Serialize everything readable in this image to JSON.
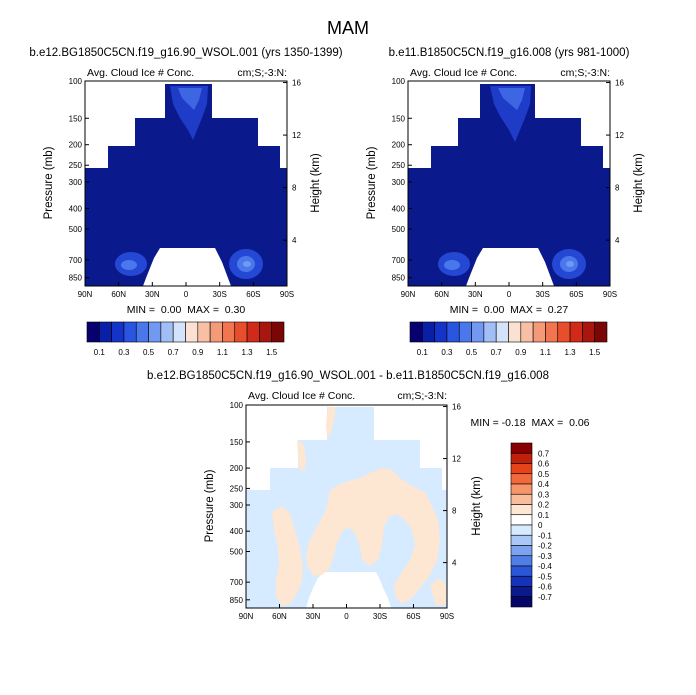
{
  "page_title": "MAM",
  "colors": {
    "land_mask": "#ffffff",
    "frame": "#000000",
    "deep_blue": "#0a1a8c",
    "mid_blue": "#1e3cc8",
    "light_blue": "#d6ebff",
    "light_peach": "#fde6d2"
  },
  "chart_data": [
    {
      "type": "contour",
      "title": "b.e12.BG1850C5CN.f19_g16.90_WSOL.001 (yrs 1350-1399)",
      "left_label": "Avg. Cloud Ice # Conc.",
      "right_label": "cm;S;-3:N:",
      "ylabel": "Pressure (mb)",
      "ylabel_right": "Height (km)",
      "x_ticks": [
        "90N",
        "60N",
        "30N",
        "0",
        "30S",
        "60S",
        "90S"
      ],
      "y_ticks": [
        "100",
        "150",
        "200",
        "250",
        "300",
        "400",
        "500",
        "700",
        "850"
      ],
      "height_ticks": [
        "16",
        "12",
        "8",
        "4"
      ],
      "stats": "MIN =  0.00  MAX =  0.30",
      "min": 0.0,
      "max": 0.3,
      "colorbar_labels": [
        "0.1",
        "0.3",
        "0.5",
        "0.7",
        "0.9",
        "1.1",
        "1.3",
        "1.5"
      ]
    },
    {
      "type": "contour",
      "title": "b.e11.B1850C5CN.f19_g16.008 (yrs 981-1000)",
      "left_label": "Avg. Cloud Ice # Conc.",
      "right_label": "cm;S;-3:N:",
      "ylabel": "Pressure (mb)",
      "ylabel_right": "Height (km)",
      "x_ticks": [
        "90N",
        "60N",
        "30N",
        "0",
        "30S",
        "60S",
        "90S"
      ],
      "y_ticks": [
        "100",
        "150",
        "200",
        "250",
        "300",
        "400",
        "500",
        "700",
        "850"
      ],
      "height_ticks": [
        "16",
        "12",
        "8",
        "4"
      ],
      "stats": "MIN =  0.00  MAX =  0.27",
      "min": 0.0,
      "max": 0.27,
      "colorbar_labels": [
        "0.1",
        "0.3",
        "0.5",
        "0.7",
        "0.9",
        "1.1",
        "1.3",
        "1.5"
      ]
    },
    {
      "type": "contour",
      "title": "b.e12.BG1850C5CN.f19_g16.90_WSOL.001 - b.e11.B1850C5CN.f19_g16.008",
      "left_label": "Avg. Cloud Ice # Conc.",
      "right_label": "cm;S;-3:N:",
      "ylabel": "Pressure (mb)",
      "ylabel_right": "Height (km)",
      "x_ticks": [
        "90N",
        "60N",
        "30N",
        "0",
        "30S",
        "60S",
        "90S"
      ],
      "y_ticks": [
        "100",
        "150",
        "200",
        "250",
        "300",
        "400",
        "500",
        "700",
        "850"
      ],
      "height_ticks": [
        "16",
        "12",
        "8",
        "4"
      ],
      "stats": "MIN = -0.18  MAX =  0.06",
      "min": -0.18,
      "max": 0.06,
      "colorbar_labels": [
        "0.7",
        "0.6",
        "0.5",
        "0.4",
        "0.3",
        "0.2",
        "0.1",
        "0",
        "-0.1",
        "-0.2",
        "-0.3",
        "-0.4",
        "-0.5",
        "-0.6",
        "-0.7"
      ]
    }
  ],
  "colorbar_main_colors": [
    "#08006e",
    "#0a1fa8",
    "#1433c8",
    "#2a55e0",
    "#4a78ec",
    "#7299f2",
    "#a2bef7",
    "#d3e3fb",
    "#fbe1d2",
    "#f9bfa4",
    "#f59a78",
    "#f07550",
    "#e94e2c",
    "#d12a18",
    "#a8160e",
    "#7a0606"
  ],
  "colorbar_diff_colors": [
    "#8a0000",
    "#c0200a",
    "#e84318",
    "#f26a3c",
    "#f6946a",
    "#f9bd9c",
    "#fde6d2",
    "#ffffff",
    "#d6ebff",
    "#a9c8f8",
    "#7ba3f0",
    "#4f7ee6",
    "#2a57d6",
    "#1433b8",
    "#0a1a8c",
    "#06066a"
  ]
}
